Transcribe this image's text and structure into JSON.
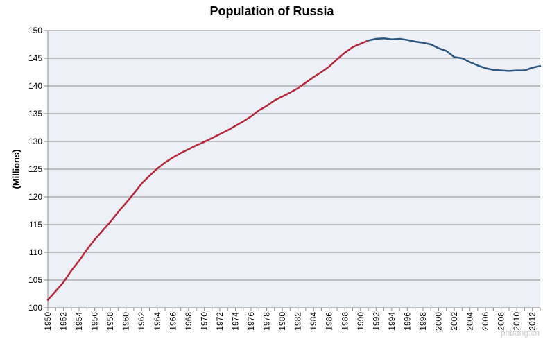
{
  "chart_data": {
    "type": "line",
    "title": "Population of Russia",
    "xlabel": "",
    "ylabel": "(Millions)",
    "xlim": [
      1950,
      2013
    ],
    "ylim": [
      100,
      150
    ],
    "y_ticks": [
      100,
      105,
      110,
      115,
      120,
      125,
      130,
      135,
      140,
      145,
      150
    ],
    "x_ticks": [
      1950,
      1952,
      1954,
      1956,
      1958,
      1960,
      1962,
      1964,
      1966,
      1968,
      1970,
      1972,
      1974,
      1976,
      1978,
      1980,
      1982,
      1984,
      1986,
      1988,
      1990,
      1992,
      1994,
      1996,
      1998,
      2000,
      2002,
      2004,
      2006,
      2008,
      2010,
      2012
    ],
    "grid": true,
    "legend": "none",
    "series": [
      {
        "color": "#b5273a",
        "x": [
          1950,
          1951,
          1952,
          1953,
          1954,
          1955,
          1956,
          1957,
          1958,
          1959,
          1960,
          1961,
          1962,
          1963,
          1964,
          1965,
          1966,
          1967,
          1968,
          1969,
          1970,
          1971,
          1972,
          1973,
          1974,
          1975,
          1976,
          1977,
          1978,
          1979,
          1980,
          1981,
          1982,
          1983,
          1984,
          1985,
          1986,
          1987,
          1988,
          1989,
          1990,
          1991
        ],
        "values": [
          101.4,
          103.0,
          104.6,
          106.7,
          108.5,
          110.5,
          112.3,
          113.9,
          115.5,
          117.3,
          118.9,
          120.6,
          122.4,
          123.8,
          125.1,
          126.2,
          127.1,
          127.9,
          128.6,
          129.3,
          129.9,
          130.6,
          131.3,
          132.0,
          132.8,
          133.6,
          134.5,
          135.6,
          136.4,
          137.4,
          138.1,
          138.8,
          139.6,
          140.6,
          141.6,
          142.5,
          143.5,
          144.8,
          146.0,
          147.0,
          147.6,
          148.2
        ]
      },
      {
        "color": "#2a567f",
        "x": [
          1991,
          1992,
          1993,
          1994,
          1995,
          1996,
          1997,
          1998,
          1999,
          2000,
          2001,
          2002,
          2003,
          2004,
          2005,
          2006,
          2007,
          2008,
          2009,
          2010,
          2011,
          2012,
          2013
        ],
        "values": [
          148.2,
          148.5,
          148.6,
          148.4,
          148.5,
          148.3,
          148.0,
          147.8,
          147.5,
          146.8,
          146.3,
          145.2,
          145.0,
          144.3,
          143.7,
          143.2,
          142.9,
          142.8,
          142.7,
          142.8,
          142.8,
          143.3,
          143.6
        ]
      }
    ]
  },
  "watermark": "phbang.cn"
}
